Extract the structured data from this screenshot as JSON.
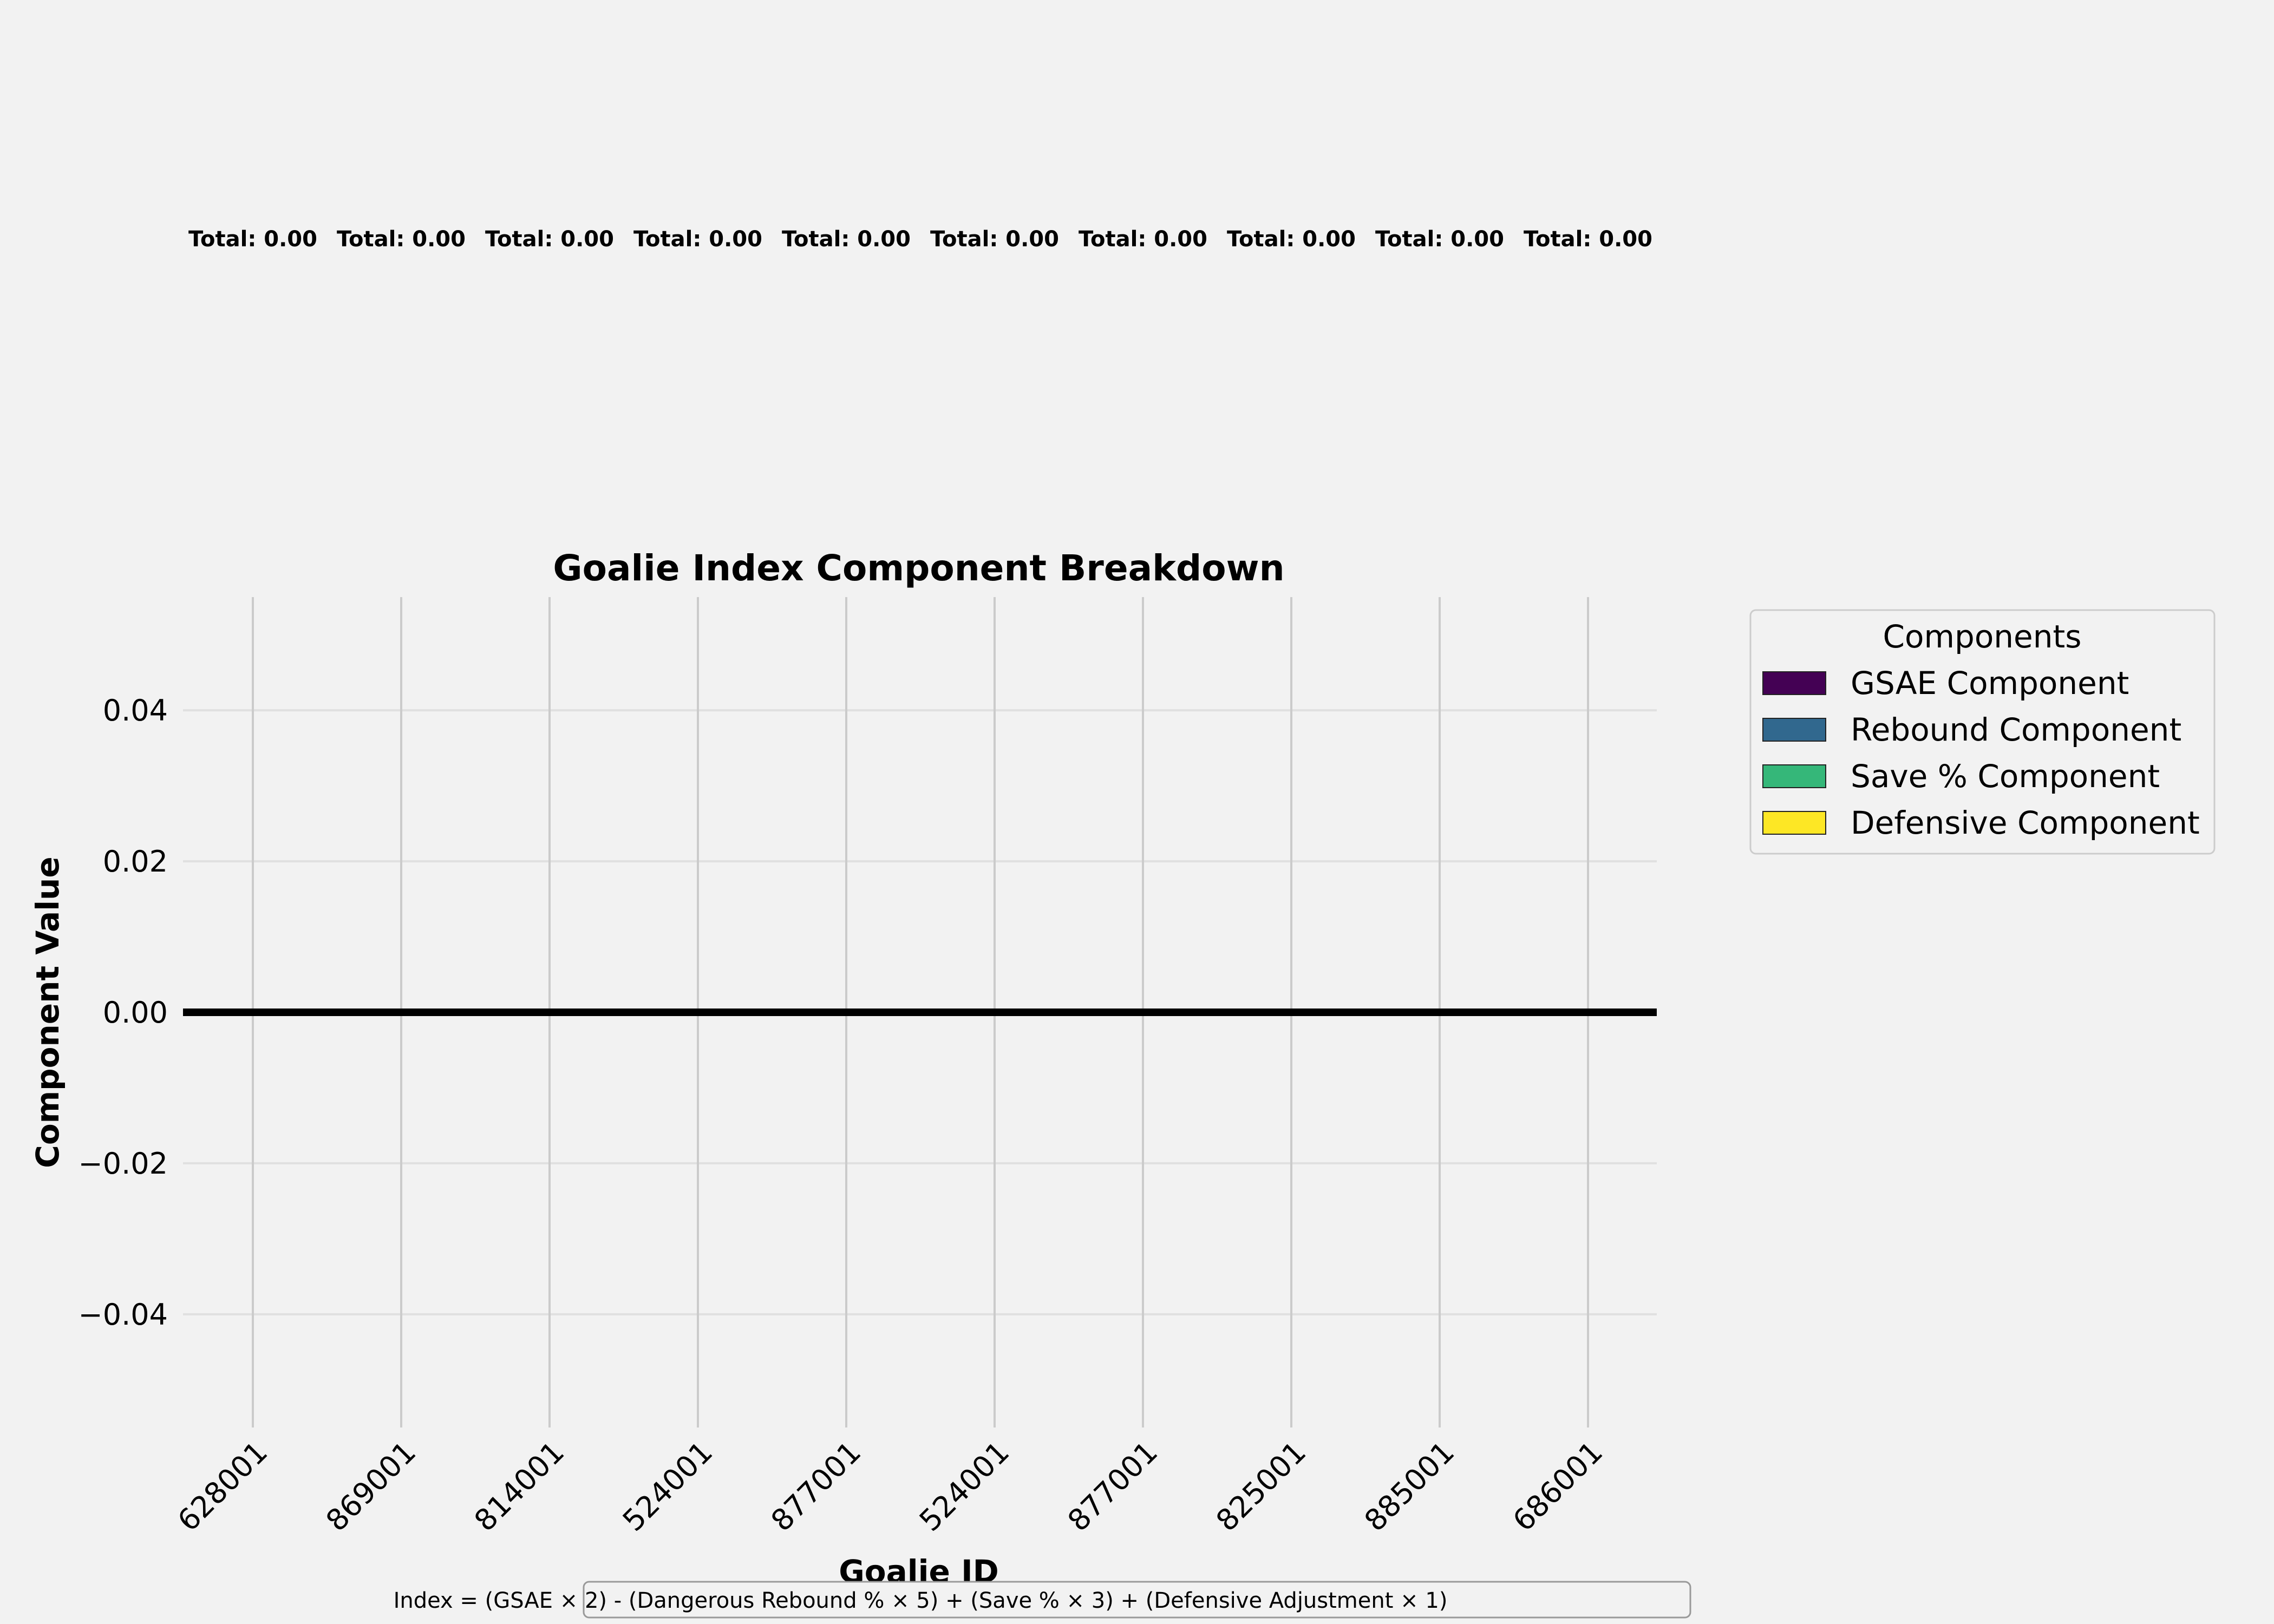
{
  "chart_data": {
    "type": "bar",
    "stacked": true,
    "title": "Goalie Index Component Breakdown",
    "xlabel": "Goalie ID",
    "ylabel": "Component Value",
    "categories": [
      "628001",
      "869001",
      "814001",
      "524001",
      "877001",
      "524001",
      "877001",
      "825001",
      "885001",
      "686001"
    ],
    "series": [
      {
        "name": "GSAE Component",
        "color": "#440154",
        "values": [
          0,
          0,
          0,
          0,
          0,
          0,
          0,
          0,
          0,
          0
        ]
      },
      {
        "name": "Rebound Component",
        "color": "#31688e",
        "values": [
          0,
          0,
          0,
          0,
          0,
          0,
          0,
          0,
          0,
          0
        ]
      },
      {
        "name": "Save % Component",
        "color": "#35b779",
        "values": [
          0,
          0,
          0,
          0,
          0,
          0,
          0,
          0,
          0,
          0
        ]
      },
      {
        "name": "Defensive Component",
        "color": "#fde725",
        "values": [
          0,
          0,
          0,
          0,
          0,
          0,
          0,
          0,
          0,
          0
        ]
      }
    ],
    "totals": [
      "Total: 0.00",
      "Total: 0.00",
      "Total: 0.00",
      "Total: 0.00",
      "Total: 0.00",
      "Total: 0.00",
      "Total: 0.00",
      "Total: 0.00",
      "Total: 0.00",
      "Total: 0.00"
    ],
    "ylim": [
      -0.055,
      0.055
    ],
    "yticks": [
      0.04,
      0.02,
      0.0,
      -0.02,
      -0.04
    ],
    "ytick_labels": [
      "0.04",
      "0.02",
      "0.00",
      "−0.02",
      "−0.04"
    ],
    "grid": true,
    "legend": {
      "title": "Components",
      "placement": "outside-right-top"
    },
    "annotation": "Index = (GSAE × 2) - (Dangerous Rebound % × 5) + (Save % × 3) + (Defensive Adjustment × 1)"
  }
}
